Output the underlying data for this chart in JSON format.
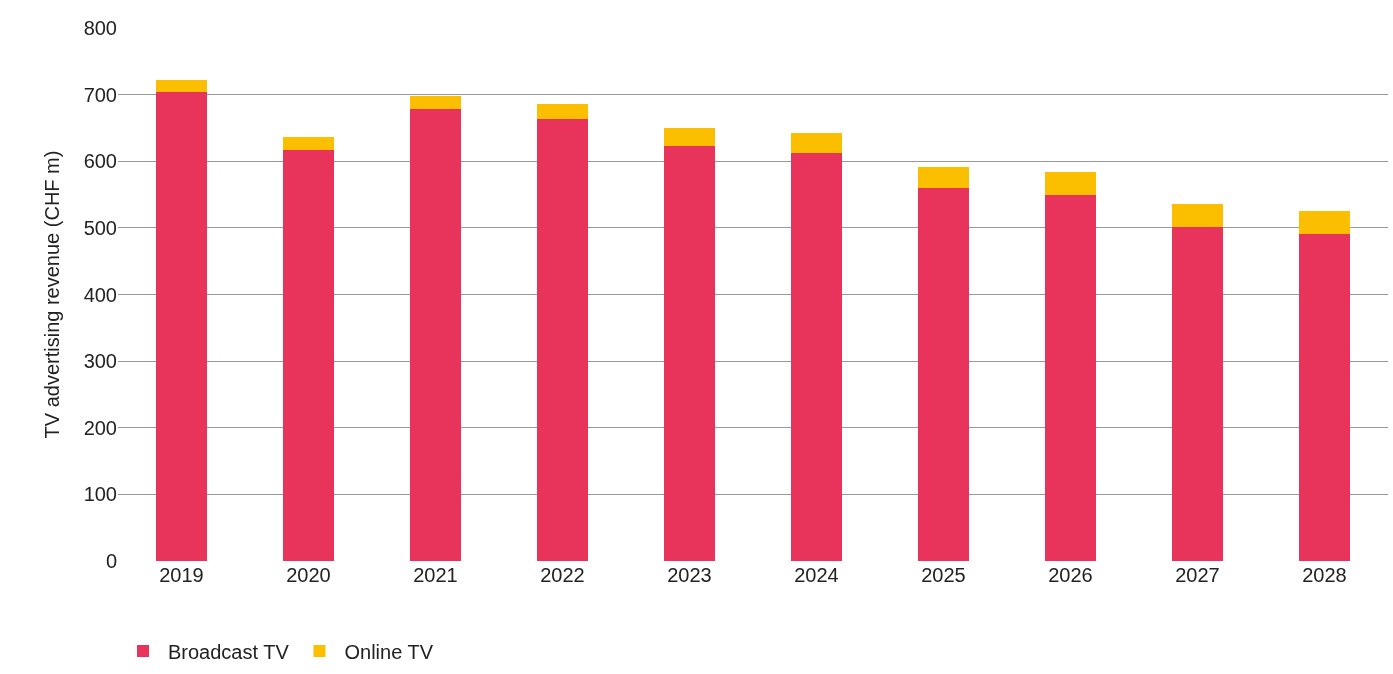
{
  "chart_data": {
    "type": "bar",
    "ylabel": "TV advertising revenue (CHF m)",
    "categories": [
      "2019",
      "2020",
      "2021",
      "2022",
      "2023",
      "2024",
      "2025",
      "2026",
      "2027",
      "2028"
    ],
    "series": [
      {
        "name": "Broadcast TV",
        "color": "#e8345a",
        "values": [
          704,
          617,
          679,
          664,
          623,
          613,
          560,
          550,
          502,
          491
        ]
      },
      {
        "name": "Online TV",
        "color": "#fbbf00",
        "values": [
          18,
          20,
          19,
          22,
          27,
          30,
          32,
          34,
          34,
          35
        ]
      }
    ],
    "stacked": true,
    "ylim": [
      0,
      800
    ],
    "yticks": [
      0,
      100,
      200,
      300,
      400,
      500,
      600,
      700,
      800
    ],
    "grid": "y",
    "legend": "bottom left"
  }
}
